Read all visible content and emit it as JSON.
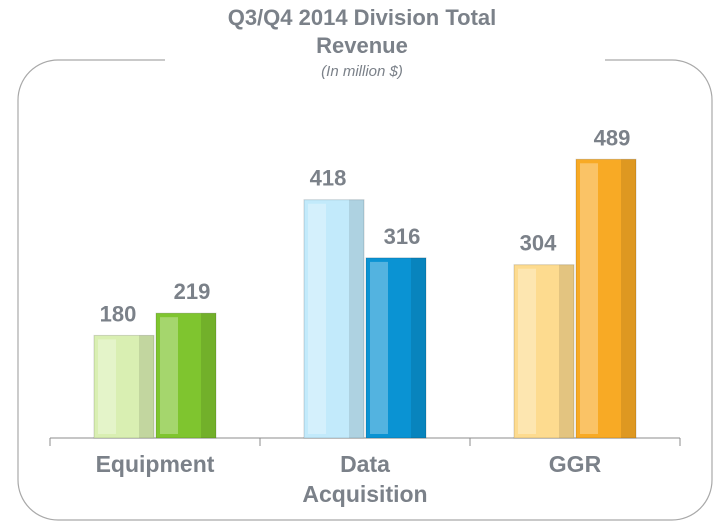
{
  "chart_data": {
    "type": "bar",
    "title": "Q3/Q4 2014 Division Total Revenue",
    "subtitle": "(In million $)",
    "categories": [
      "Equipment",
      "Data Acquisition",
      "GGR"
    ],
    "series": [
      {
        "values": [
          180,
          418,
          304
        ],
        "colors": [
          "#d9efb2",
          "#c2eafb",
          "#fddb8f"
        ]
      },
      {
        "values": [
          219,
          316,
          489
        ],
        "colors": [
          "#7fc52f",
          "#0a93d3",
          "#f8aa25"
        ]
      }
    ]
  }
}
